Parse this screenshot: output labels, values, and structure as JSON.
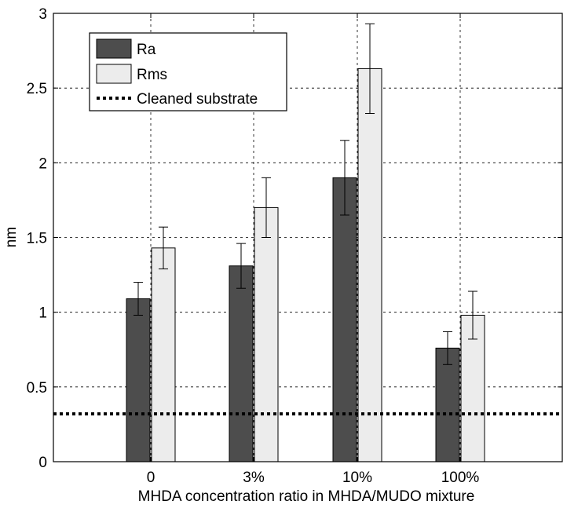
{
  "chart_data": {
    "type": "bar",
    "title": "",
    "xlabel": "MHDA concentration ratio in MHDA/MUDO mixture",
    "ylabel": "nm",
    "categories": [
      "0",
      "3%",
      "10%",
      "100%"
    ],
    "ylim": [
      0,
      3
    ],
    "yticks": [
      "0",
      "0.5",
      "1",
      "1.5",
      "2",
      "2.5",
      "3"
    ],
    "grid": true,
    "grid_style": "dotted",
    "legend_position": "top-left",
    "series": [
      {
        "name": "Ra",
        "color": "#4d4d4d",
        "values": [
          1.09,
          1.31,
          1.9,
          0.76
        ],
        "errors": [
          0.11,
          0.15,
          0.25,
          0.11
        ]
      },
      {
        "name": "Rms",
        "color": "#ececec",
        "values": [
          1.43,
          1.7,
          2.63,
          0.98
        ],
        "errors": [
          0.14,
          0.2,
          0.3,
          0.16
        ]
      }
    ],
    "reference_line": {
      "name": "Cleaned substrate",
      "value": 0.32,
      "style": "dotted",
      "color": "#000000"
    }
  }
}
